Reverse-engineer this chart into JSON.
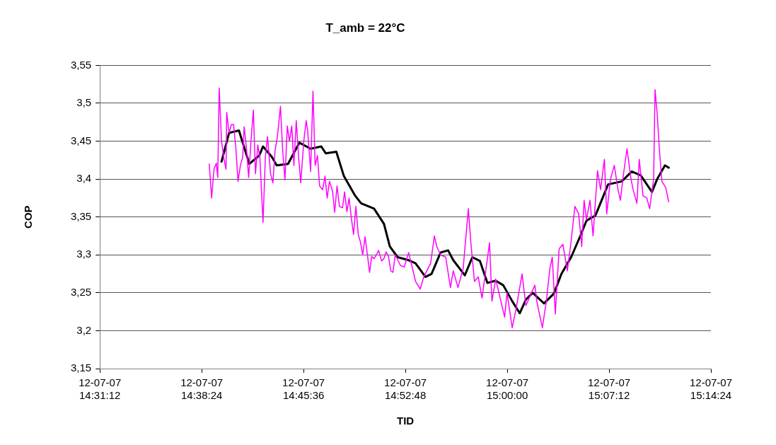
{
  "chart_data": {
    "type": "line",
    "title": "T_amb = 22°C",
    "xlabel": "TID",
    "ylabel": "COP",
    "xlim": [
      "--07-12T14:31:12",
      "--07-12T15:14:24"
    ],
    "xticks": [
      {
        "value": "--07-12T14:31:12",
        "label": "12-07-07\n14:31:12"
      },
      {
        "value": "--07-12T14:38:24",
        "label": "12-07-07\n14:38:24"
      },
      {
        "value": "--07-12T14:45:36",
        "label": "12-07-07\n14:45:36"
      },
      {
        "value": "--07-12T14:52:48",
        "label": "12-07-07\n14:52:48"
      },
      {
        "value": "--07-12T15:00:00",
        "label": "12-07-07\n15:00:00"
      },
      {
        "value": "--07-12T15:07:12",
        "label": "12-07-07\n15:07:12"
      },
      {
        "value": "--07-12T15:14:24",
        "label": "12-07-07\n15:14:24"
      }
    ],
    "ylim": [
      3.15,
      3.55
    ],
    "yticks": [
      {
        "value": 3.15,
        "label": "3,15"
      },
      {
        "value": 3.2,
        "label": "3,2"
      },
      {
        "value": 3.25,
        "label": "3,25"
      },
      {
        "value": 3.3,
        "label": "3,3"
      },
      {
        "value": 3.35,
        "label": "3,35"
      },
      {
        "value": 3.4,
        "label": "3,4"
      },
      {
        "value": 3.45,
        "label": "3,45"
      },
      {
        "value": 3.5,
        "label": "3,5"
      },
      {
        "value": 3.55,
        "label": "3,55"
      }
    ],
    "grid": "y",
    "marker": "none",
    "line_style": "solid",
    "series": [
      {
        "color": "#ff00ff",
        "x": [
          "--07-12T14:38:56",
          "--07-12T14:39:06",
          "--07-12T14:39:16",
          "--07-12T14:39:26",
          "--07-12T14:39:32",
          "--07-12T14:39:38",
          "--07-12T14:39:48",
          "--07-12T14:39:58",
          "--07-12T14:40:07",
          "--07-12T14:40:10",
          "--07-12T14:40:20",
          "--07-12T14:40:30",
          "--07-12T14:40:39",
          "--07-12T14:40:49",
          "--07-12T14:40:58",
          "--07-12T14:41:08",
          "--07-12T14:41:18",
          "--07-12T14:41:24",
          "--07-12T14:41:34",
          "--07-12T14:41:43",
          "--07-12T14:41:53",
          "--07-12T14:42:03",
          "--07-12T14:42:12",
          "--07-12T14:42:22",
          "--07-12T14:42:31",
          "--07-12T14:42:44",
          "--07-12T14:42:54",
          "--07-12T14:43:03",
          "--07-12T14:43:16",
          "--07-12T14:43:26",
          "--07-12T14:43:35",
          "--07-12T14:43:45",
          "--07-12T14:43:58",
          "--07-12T14:44:07",
          "--07-12T14:44:17",
          "--07-12T14:44:27",
          "--07-12T14:44:36",
          "--07-12T14:44:46",
          "--07-12T14:44:55",
          "--07-12T14:45:05",
          "--07-12T14:45:15",
          "--07-12T14:45:24",
          "--07-12T14:45:37",
          "--07-12T14:45:47",
          "--07-12T14:45:53",
          "--07-12T14:46:06",
          "--07-12T14:46:16",
          "--07-12T14:46:25",
          "--07-12T14:46:35",
          "--07-12T14:46:44",
          "--07-12T14:46:57",
          "--07-12T14:47:07",
          "--07-12T14:47:16",
          "--07-12T14:47:26",
          "--07-12T14:47:39",
          "--07-12T14:47:48",
          "--07-12T14:47:58",
          "--07-12T14:48:08",
          "--07-12T14:48:21",
          "--07-12T14:48:30",
          "--07-12T14:48:40",
          "--07-12T14:48:49",
          "--07-12T14:48:59",
          "--07-12T14:49:08",
          "--07-12T14:49:18",
          "--07-12T14:49:28",
          "--07-12T14:49:38",
          "--07-12T14:49:47",
          "--07-12T14:49:57",
          "--07-12T14:50:06",
          "--07-12T14:50:16",
          "--07-12T14:50:25",
          "--07-12T14:50:35",
          "--07-12T14:50:45",
          "--07-12T14:50:54",
          "--07-12T14:51:07",
          "--07-12T14:51:17",
          "--07-12T14:51:26",
          "--07-12T14:51:36",
          "--07-12T14:51:46",
          "--07-12T14:51:55",
          "--07-12T14:52:05",
          "--07-12T14:52:27",
          "--07-12T14:52:43",
          "--07-12T14:53:02",
          "--07-12T14:53:31",
          "--07-12T14:53:51",
          "--07-12T14:54:06",
          "--07-12T14:54:35",
          "--07-12T14:54:51",
          "--07-12T14:55:01",
          "--07-12T14:55:17",
          "--07-12T14:55:39",
          "--07-12T14:55:59",
          "--07-12T14:56:11",
          "--07-12T14:56:31",
          "--07-12T14:56:53",
          "--07-12T14:57:15",
          "--07-12T14:57:25",
          "--07-12T14:57:41",
          "--07-12T14:57:57",
          "--07-12T14:58:13",
          "--07-12T14:58:45",
          "--07-12T14:58:55",
          "--07-12T14:59:11",
          "--07-12T14:59:33",
          "--07-12T14:59:49",
          "--07-12T14:59:59",
          "--07-12T15:00:21",
          "--07-12T15:00:37",
          "--07-12T15:01:03",
          "--07-12T15:01:19",
          "--07-12T15:01:57",
          "--07-12T15:02:07",
          "--07-12T15:02:29",
          "--07-12T15:02:46",
          "--07-12T15:03:01",
          "--07-12T15:03:11",
          "--07-12T15:03:24",
          "--07-12T15:03:40",
          "--07-12T15:03:56",
          "--07-12T15:04:15",
          "--07-12T15:04:31",
          "--07-12T15:04:47",
          "--07-12T15:05:03",
          "--07-12T15:05:16",
          "--07-12T15:05:26",
          "--07-12T15:05:36",
          "--07-12T15:05:51",
          "--07-12T15:06:04",
          "--07-12T15:06:23",
          "--07-12T15:06:36",
          "--07-12T15:06:52",
          "--07-12T15:07:02",
          "--07-12T15:07:18",
          "--07-12T15:07:34",
          "--07-12T15:07:50",
          "--07-12T15:08:00",
          "--07-12T15:08:12",
          "--07-12T15:08:28",
          "--07-12T15:08:45",
          "--07-12T15:08:54",
          "--07-12T15:09:10",
          "--07-12T15:09:20",
          "--07-12T15:09:36",
          "--07-12T15:09:52",
          "--07-12T15:10:04",
          "--07-12T15:10:21",
          "--07-12T15:10:27",
          "--07-12T15:10:36",
          "--07-12T15:10:46",
          "--07-12T15:10:56",
          "--07-12T15:11:12",
          "--07-12T15:11:25"
        ],
        "values": [
          3.42,
          3.375,
          3.413,
          3.421,
          3.402,
          3.52,
          3.45,
          3.427,
          3.413,
          3.488,
          3.461,
          3.472,
          3.472,
          3.44,
          3.397,
          3.418,
          3.429,
          3.469,
          3.44,
          3.402,
          3.45,
          3.491,
          3.407,
          3.445,
          3.427,
          3.343,
          3.429,
          3.456,
          3.407,
          3.395,
          3.437,
          3.456,
          3.496,
          3.44,
          3.399,
          3.47,
          3.45,
          3.47,
          3.418,
          3.477,
          3.429,
          3.395,
          3.45,
          3.477,
          3.465,
          3.41,
          3.516,
          3.418,
          3.431,
          3.391,
          3.386,
          3.404,
          3.375,
          3.397,
          3.384,
          3.356,
          3.391,
          3.364,
          3.362,
          3.383,
          3.357,
          3.375,
          3.348,
          3.327,
          3.364,
          3.327,
          3.316,
          3.3,
          3.324,
          3.302,
          3.277,
          3.298,
          3.295,
          3.3,
          3.306,
          3.292,
          3.295,
          3.304,
          3.298,
          3.279,
          3.277,
          3.3,
          3.286,
          3.284,
          3.303,
          3.265,
          3.255,
          3.271,
          3.289,
          3.325,
          3.311,
          3.3,
          3.297,
          3.257,
          3.279,
          3.257,
          3.282,
          3.361,
          3.318,
          3.265,
          3.271,
          3.243,
          3.316,
          3.239,
          3.268,
          3.239,
          3.218,
          3.25,
          3.204,
          3.228,
          3.275,
          3.233,
          3.26,
          3.236,
          3.204,
          3.239,
          3.282,
          3.297,
          3.222,
          3.308,
          3.314,
          3.279,
          3.318,
          3.364,
          3.354,
          3.311,
          3.372,
          3.346,
          3.372,
          3.325,
          3.411,
          3.386,
          3.426,
          3.354,
          3.4,
          3.418,
          3.386,
          3.372,
          3.404,
          3.44,
          3.4,
          3.386,
          3.368,
          3.426,
          3.378,
          3.375,
          3.361,
          3.4,
          3.518,
          3.486,
          3.436,
          3.397,
          3.389,
          3.37
        ]
      },
      {
        "color": "#000000",
        "x": [
          "--07-12T14:39:48",
          "--07-12T14:40:20",
          "--07-12T14:41:02",
          "--07-12T14:41:46",
          "--07-12T14:42:28",
          "--07-12T14:42:44",
          "--07-12T14:43:22",
          "--07-12T14:43:42",
          "--07-12T14:44:30",
          "--07-12T14:45:18",
          "--07-12T14:46:06",
          "--07-12T14:46:51",
          "--07-12T14:47:10",
          "--07-12T14:47:55",
          "--07-12T14:48:27",
          "--07-12T14:49:15",
          "--07-12T14:49:40",
          "--07-12T14:50:35",
          "--07-12T14:51:17",
          "--07-12T14:51:42",
          "--07-12T14:52:15",
          "--07-12T14:53:02",
          "--07-12T14:53:31",
          "--07-12T14:54:13",
          "--07-12T14:54:39",
          "--07-12T14:55:17",
          "--07-12T14:55:49",
          "--07-12T14:56:11",
          "--07-12T14:57:00",
          "--07-12T14:57:32",
          "--07-12T14:58:04",
          "--07-12T14:58:36",
          "--07-12T14:59:11",
          "--07-12T14:59:43",
          "--07-12T15:00:21",
          "--07-12T15:00:53",
          "--07-12T15:01:19",
          "--07-12T15:01:48",
          "--07-12T15:02:36",
          "--07-12T15:03:18",
          "--07-12T15:03:50",
          "--07-12T15:04:31",
          "--07-12T15:05:10",
          "--07-12T15:05:36",
          "--07-12T15:06:14",
          "--07-12T15:07:08",
          "--07-12T15:08:06",
          "--07-12T15:08:48",
          "--07-12T15:09:26",
          "--07-12T15:10:14",
          "--07-12T15:10:36",
          "--07-12T15:11:09",
          "--07-12T15:11:25"
        ],
        "values": [
          3.423,
          3.461,
          3.464,
          3.42,
          3.431,
          3.443,
          3.429,
          3.418,
          3.42,
          3.448,
          3.44,
          3.443,
          3.434,
          3.436,
          3.404,
          3.378,
          3.368,
          3.361,
          3.341,
          3.311,
          3.297,
          3.293,
          3.289,
          3.271,
          3.275,
          3.303,
          3.306,
          3.293,
          3.273,
          3.297,
          3.292,
          3.263,
          3.266,
          3.26,
          3.239,
          3.223,
          3.241,
          3.25,
          3.236,
          3.249,
          3.275,
          3.297,
          3.325,
          3.345,
          3.352,
          3.393,
          3.397,
          3.41,
          3.405,
          3.383,
          3.4,
          3.418,
          3.415
        ]
      }
    ]
  }
}
